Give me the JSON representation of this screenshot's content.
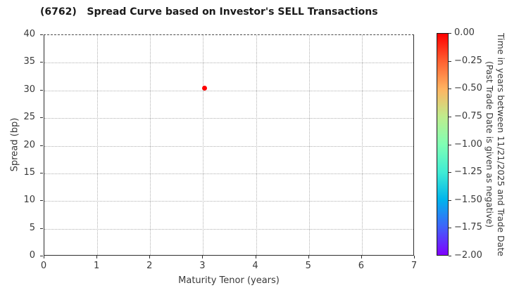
{
  "chart_data": {
    "type": "scatter",
    "title": "(6762)   Spread Curve based on Investor's SELL Transactions",
    "xlabel": "Maturity Tenor (years)",
    "ylabel": "Spread (bp)",
    "xlim": [
      0,
      7
    ],
    "ylim": [
      0,
      40
    ],
    "xticks": [
      0,
      1,
      2,
      3,
      4,
      5,
      6,
      7
    ],
    "yticks": [
      0,
      5,
      10,
      15,
      20,
      25,
      30,
      35,
      40
    ],
    "grid": true,
    "grid_style": "dotted",
    "legend": "none",
    "points": [
      {
        "x": 3.03,
        "y": 30.4,
        "color_value": 0.0,
        "color": "#ff0000"
      }
    ],
    "colorbar": {
      "label_line1": "Time in years between 11/21/2025 and Trade Date",
      "label_line2": "(Past Trade Date is given as negative)",
      "tick_labels": [
        "0.00",
        "−0.25",
        "−0.50",
        "−0.75",
        "−1.00",
        "−1.25",
        "−1.50",
        "−1.75",
        "−2.00"
      ],
      "value_range": [
        0.0,
        -2.0
      ],
      "colormap": "rainbow-reversed",
      "gradient_stops": [
        {
          "pos": 0.0,
          "color": "#ff0000"
        },
        {
          "pos": 0.125,
          "color": "#ff6131"
        },
        {
          "pos": 0.25,
          "color": "#ffb461"
        },
        {
          "pos": 0.375,
          "color": "#bfec8d"
        },
        {
          "pos": 0.5,
          "color": "#80ffb4"
        },
        {
          "pos": 0.625,
          "color": "#40ecd4"
        },
        {
          "pos": 0.75,
          "color": "#00b4ec"
        },
        {
          "pos": 0.875,
          "color": "#4061fa"
        },
        {
          "pos": 1.0,
          "color": "#8000ff"
        }
      ]
    }
  }
}
